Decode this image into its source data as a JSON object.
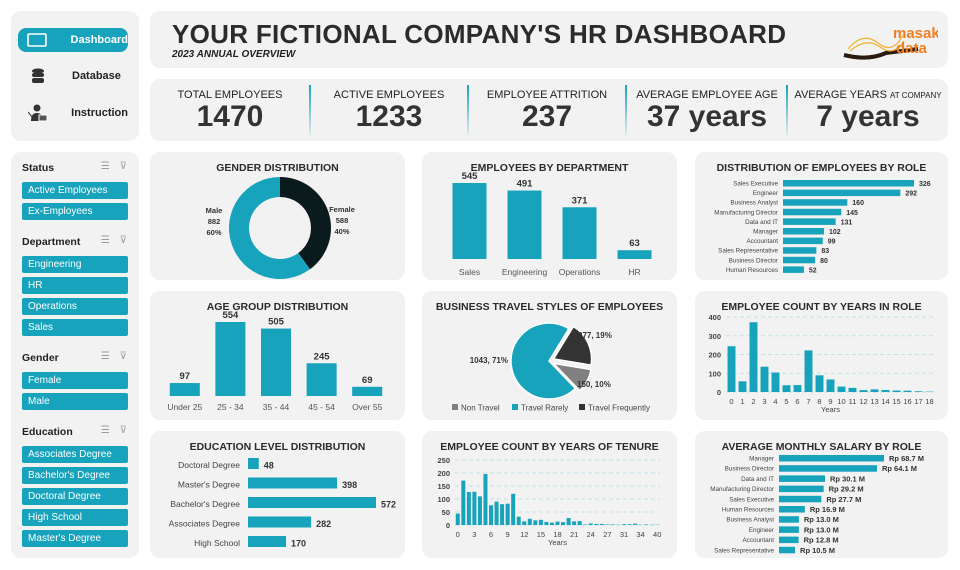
{
  "nav": {
    "items": [
      {
        "label": "Dashboard",
        "icon": "monitor-icon",
        "active": true
      },
      {
        "label": "Database",
        "icon": "database-icon"
      },
      {
        "label": "Instruction",
        "icon": "presenter-icon"
      }
    ]
  },
  "header": {
    "title": "YOUR FICTIONAL COMPANY'S HR DASHBOARD",
    "subtitle": "2023 ANNUAL OVERVIEW",
    "logo_text": "masak data"
  },
  "kpis": [
    {
      "label": "TOTAL EMPLOYEES",
      "value": "1470"
    },
    {
      "label": "ACTIVE EMPLOYEES",
      "value": "1233"
    },
    {
      "label": "EMPLOYEE ATTRITION",
      "value": "237"
    },
    {
      "label": "AVERAGE EMPLOYEE AGE",
      "value": "37 years"
    },
    {
      "label": "AVERAGE YEARS",
      "label_small": "AT COMPANY",
      "value": "7 years"
    }
  ],
  "filters": [
    {
      "title": "Status",
      "options": [
        "Active Employees",
        "Ex-Employees"
      ]
    },
    {
      "title": "Department",
      "options": [
        "Engineering",
        "HR",
        "Operations",
        "Sales"
      ]
    },
    {
      "title": "Gender",
      "options": [
        "Female",
        "Male"
      ]
    },
    {
      "title": "Education",
      "options": [
        "Associates Degree",
        "Bachelor's Degree",
        "Doctoral Degree",
        "High School",
        "Master's Degree"
      ]
    }
  ],
  "colors": {
    "accent": "#16a3bb",
    "dark": "#0b1a1c",
    "gray": "#808080",
    "darkgray": "#333333",
    "card": "#f2f2f2"
  },
  "chart_data": [
    {
      "id": "gender",
      "type": "pie",
      "donut": true,
      "title": "GENDER DISTRIBUTION",
      "categories": [
        "Male",
        "Female"
      ],
      "values": [
        882,
        588
      ],
      "percent_labels": [
        "60%",
        "40%"
      ]
    },
    {
      "id": "dept",
      "type": "bar",
      "title": "EMPLOYEES BY DEPARTMENT",
      "categories": [
        "Sales",
        "Engineering",
        "Operations",
        "HR"
      ],
      "values": [
        545,
        491,
        371,
        63
      ]
    },
    {
      "id": "role",
      "type": "bar",
      "orientation": "horizontal",
      "title": "DISTRIBUTION  OF EMPLOYEES  BY ROLE",
      "categories": [
        "Sales Executive",
        "Engineer",
        "Business Analyst",
        "Manufacturing Director",
        "Data and IT",
        "Manager",
        "Accountant",
        "Sales Representative",
        "Business Director",
        "Human Resources"
      ],
      "values": [
        326,
        292,
        160,
        145,
        131,
        102,
        99,
        83,
        80,
        52
      ]
    },
    {
      "id": "age",
      "type": "bar",
      "title": "AGE GROUP DISTRIBUTION",
      "categories": [
        "Under 25",
        "25 - 34",
        "35 - 44",
        "45 - 54",
        "Over 55"
      ],
      "values": [
        97,
        554,
        505,
        245,
        69
      ]
    },
    {
      "id": "travel",
      "type": "pie",
      "title": "BUSINESS TRAVEL STYLES OF EMPLOYEES",
      "categories": [
        "Non Travel",
        "Travel Rarely",
        "Travel Frequently"
      ],
      "values": [
        150,
        1043,
        277
      ],
      "data_labels": [
        "150, 10%",
        "1043, 71%",
        "277, 19%"
      ],
      "legend": "bottom"
    },
    {
      "id": "yrsrole",
      "type": "bar",
      "title": "EMPLOYEE COUNT BY YEARS IN ROLE",
      "xlabel": "Years",
      "ylim": [
        0,
        400
      ],
      "yticks": [
        0,
        100,
        200,
        300,
        400
      ],
      "grid": true,
      "categories": [
        "0",
        "1",
        "2",
        "3",
        "4",
        "5",
        "6",
        "7",
        "8",
        "9",
        "10",
        "11",
        "12",
        "13",
        "14",
        "15",
        "16",
        "17",
        "18"
      ],
      "values": [
        244,
        57,
        372,
        135,
        104,
        36,
        37,
        222,
        89,
        67,
        29,
        22,
        10,
        14,
        11,
        8,
        7,
        4,
        2
      ]
    },
    {
      "id": "education",
      "type": "bar",
      "orientation": "horizontal",
      "title": "EDUCATION LEVEL DISTRIBUTION",
      "categories": [
        "Doctoral Degree",
        "Master's Degree",
        "Bachelor's Degree",
        "Associates Degree",
        "High School"
      ],
      "values": [
        48,
        398,
        572,
        282,
        170
      ]
    },
    {
      "id": "tenure",
      "type": "bar",
      "title": "EMPLOYEE COUNT BY YEARS OF TENURE",
      "xlabel": "Years",
      "ylim": [
        0,
        250
      ],
      "yticks": [
        0,
        50,
        100,
        150,
        200,
        250
      ],
      "grid": true,
      "categories": [
        "0",
        "1",
        "2",
        "3",
        "4",
        "5",
        "6",
        "7",
        "8",
        "9",
        "10",
        "11",
        "12",
        "13",
        "14",
        "15",
        "16",
        "17",
        "18",
        "19",
        "20",
        "21",
        "22",
        "23",
        "24",
        "25",
        "26",
        "27",
        "29",
        "30",
        "31",
        "32",
        "33",
        "34",
        "36",
        "37",
        "40"
      ],
      "xticks_shown": [
        "0",
        "3",
        "6",
        "9",
        "12",
        "15",
        "18",
        "21",
        "24",
        "27",
        "31",
        "34",
        "40"
      ],
      "values": [
        44,
        171,
        127,
        128,
        110,
        196,
        76,
        90,
        80,
        82,
        120,
        32,
        14,
        24,
        18,
        20,
        12,
        9,
        13,
        11,
        27,
        14,
        15,
        2,
        6,
        4,
        4,
        2,
        2,
        1,
        3,
        3,
        5,
        1,
        2,
        1,
        1
      ]
    },
    {
      "id": "salary",
      "type": "bar",
      "orientation": "horizontal",
      "title": "AVERAGE MONTHLY SALARY BY ROLE",
      "unit": "Rp M",
      "categories": [
        "Manager",
        "Business Director",
        "Data and IT",
        "Manufacturing Director",
        "Sales Executive",
        "Human Resources",
        "Business Analyst",
        "Engineer",
        "Accountant",
        "Sales Representative"
      ],
      "values": [
        68.7,
        64.1,
        30.1,
        29.2,
        27.7,
        16.9,
        13.0,
        13.0,
        12.8,
        10.5
      ],
      "data_labels": [
        "Rp 68.7  M",
        "Rp 64.1  M",
        "Rp 30.1  M",
        "Rp 29.2  M",
        "Rp 27.7  M",
        "Rp 16.9  M",
        "Rp 13.0  M",
        "Rp 13.0  M",
        "Rp 12.8  M",
        "Rp 10.5  M"
      ]
    }
  ]
}
